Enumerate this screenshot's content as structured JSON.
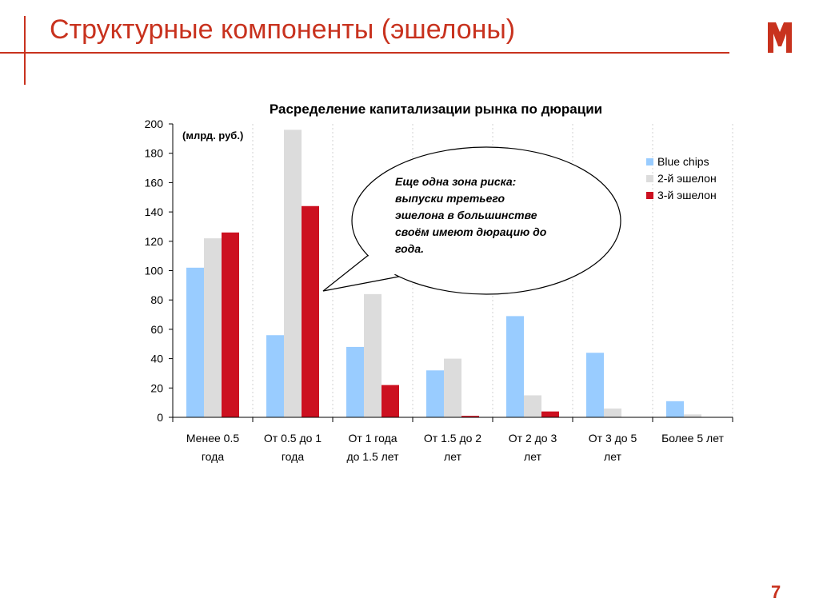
{
  "slide": {
    "title": "Структурные компоненты (эшелоны)",
    "page_number": "7",
    "accent_color": "#c8321e",
    "logo_icon": "m-logo-icon"
  },
  "chart_data": {
    "type": "bar",
    "title": "Раcределение капитализации рынка по дюрации",
    "unit_label": "(млрд. руб.)",
    "xlabel": "",
    "ylabel": "",
    "ylim": [
      0,
      200
    ],
    "yticks": [
      0,
      20,
      40,
      60,
      80,
      100,
      120,
      140,
      160,
      180,
      200
    ],
    "grid": "vertical-dashed",
    "legend_position": "top-right",
    "categories": [
      [
        "Менее 0.5",
        "года"
      ],
      [
        "От 0.5 до 1",
        "года"
      ],
      [
        "От 1 года",
        "до 1.5 лет"
      ],
      [
        "От 1.5 до 2",
        "лет"
      ],
      [
        "От 2 до 3",
        "лет"
      ],
      [
        "От 3 до 5",
        "лет"
      ],
      [
        "Более 5 лет"
      ]
    ],
    "series": [
      {
        "name": "Blue chips",
        "color": "#99ccff",
        "values": [
          102,
          56,
          48,
          32,
          69,
          44,
          11
        ]
      },
      {
        "name": "2-й эшелон",
        "color": "#dcdcdc",
        "values": [
          122,
          196,
          84,
          40,
          15,
          6,
          2
        ]
      },
      {
        "name": "3-й эшелон",
        "color": "#cc1020",
        "values": [
          126,
          144,
          22,
          1,
          4,
          0,
          0
        ]
      }
    ],
    "annotation": {
      "lines": [
        "Еще одна зона риска:",
        "выпуски третьего",
        "эшелона в большинстве",
        "своём имеют дюрацию до",
        "года."
      ]
    }
  }
}
